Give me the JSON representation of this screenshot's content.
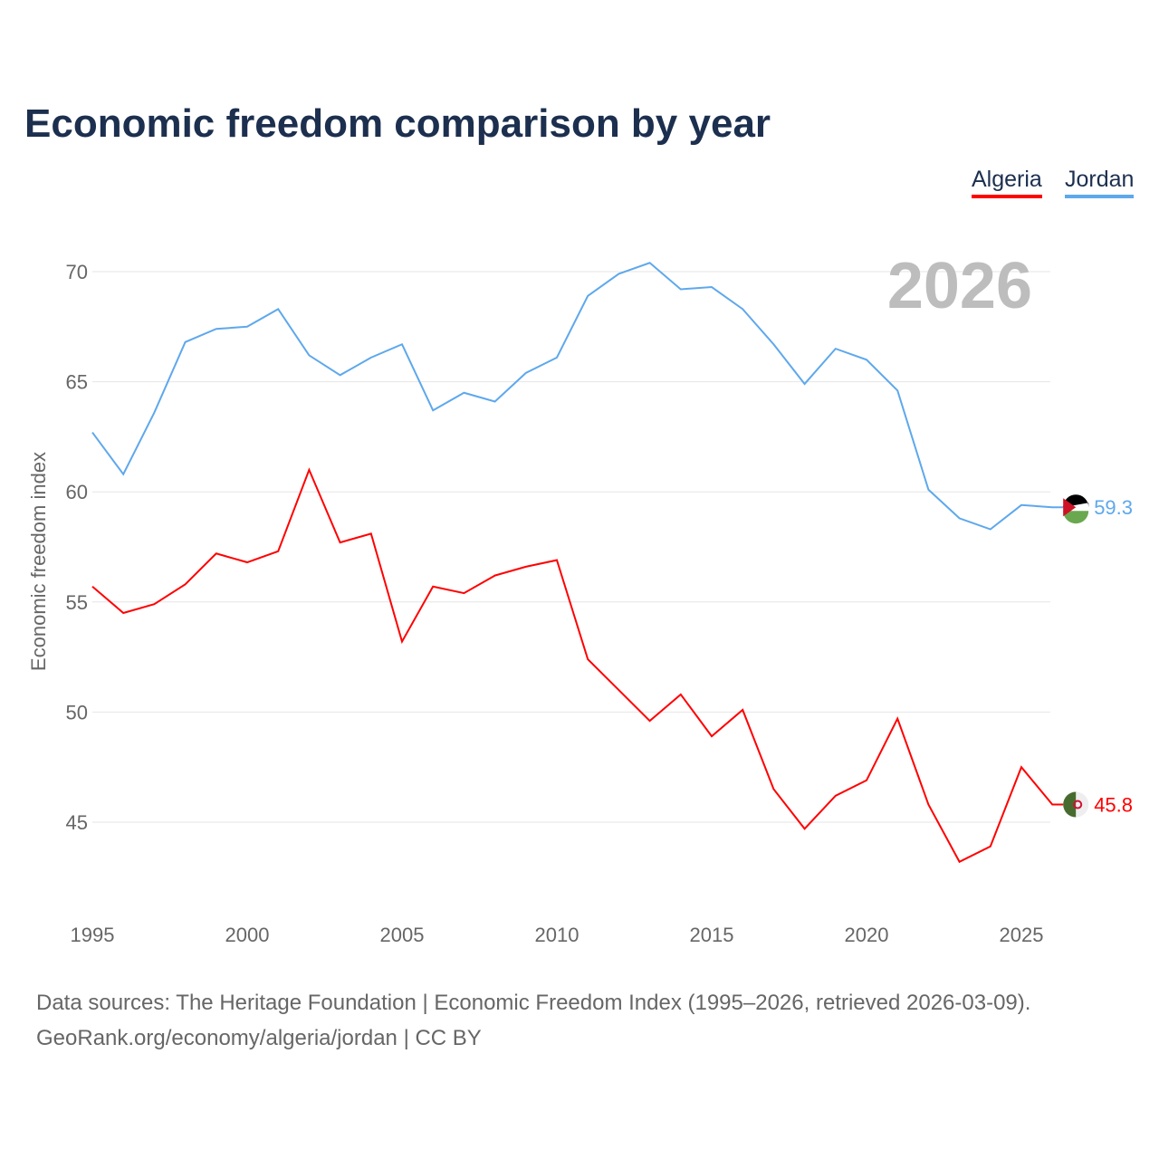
{
  "chart_data": {
    "type": "line",
    "title": "Economic freedom comparison by year",
    "ylabel": "Economic freedom index",
    "xlabel": "",
    "ylim": [
      40.8,
      71.6
    ],
    "xlim": [
      1995,
      2026
    ],
    "yticks": [
      45,
      50,
      55,
      60,
      65,
      70
    ],
    "xticks": [
      1995,
      2000,
      2005,
      2010,
      2015,
      2020,
      2025
    ],
    "grid": true,
    "legend_position": "top-right",
    "year_label": "2026",
    "x": [
      1995,
      1996,
      1997,
      1998,
      1999,
      2000,
      2001,
      2002,
      2003,
      2004,
      2005,
      2006,
      2007,
      2008,
      2009,
      2010,
      2011,
      2012,
      2013,
      2014,
      2015,
      2016,
      2017,
      2018,
      2019,
      2020,
      2021,
      2022,
      2023,
      2024,
      2025,
      2026
    ],
    "series": [
      {
        "name": "Algeria",
        "color": "#ff0000",
        "end_label": "45.8",
        "values": [
          55.7,
          54.5,
          54.9,
          55.8,
          57.2,
          56.8,
          57.3,
          61.0,
          57.7,
          58.1,
          53.2,
          55.7,
          55.4,
          56.2,
          56.6,
          56.9,
          52.4,
          51.0,
          49.6,
          50.8,
          48.9,
          50.1,
          46.5,
          44.7,
          46.2,
          46.9,
          49.7,
          45.8,
          43.2,
          43.9,
          47.5,
          45.8
        ]
      },
      {
        "name": "Jordan",
        "color": "#5ea8ec",
        "end_label": "59.3",
        "values": [
          62.7,
          60.8,
          63.6,
          66.8,
          67.4,
          67.5,
          68.3,
          66.2,
          65.3,
          66.1,
          66.7,
          63.7,
          64.5,
          64.1,
          65.4,
          66.1,
          68.9,
          69.9,
          70.4,
          69.2,
          69.3,
          68.3,
          66.7,
          64.9,
          66.5,
          66.0,
          64.6,
          60.1,
          58.8,
          58.3,
          59.4,
          59.3
        ]
      }
    ]
  },
  "source_line1": "Data sources: The Heritage Foundation | Economic Freedom Index (1995–2026, retrieved 2026-03-09).",
  "source_line2": "GeoRank.org/economy/algeria/jordan | CC BY"
}
